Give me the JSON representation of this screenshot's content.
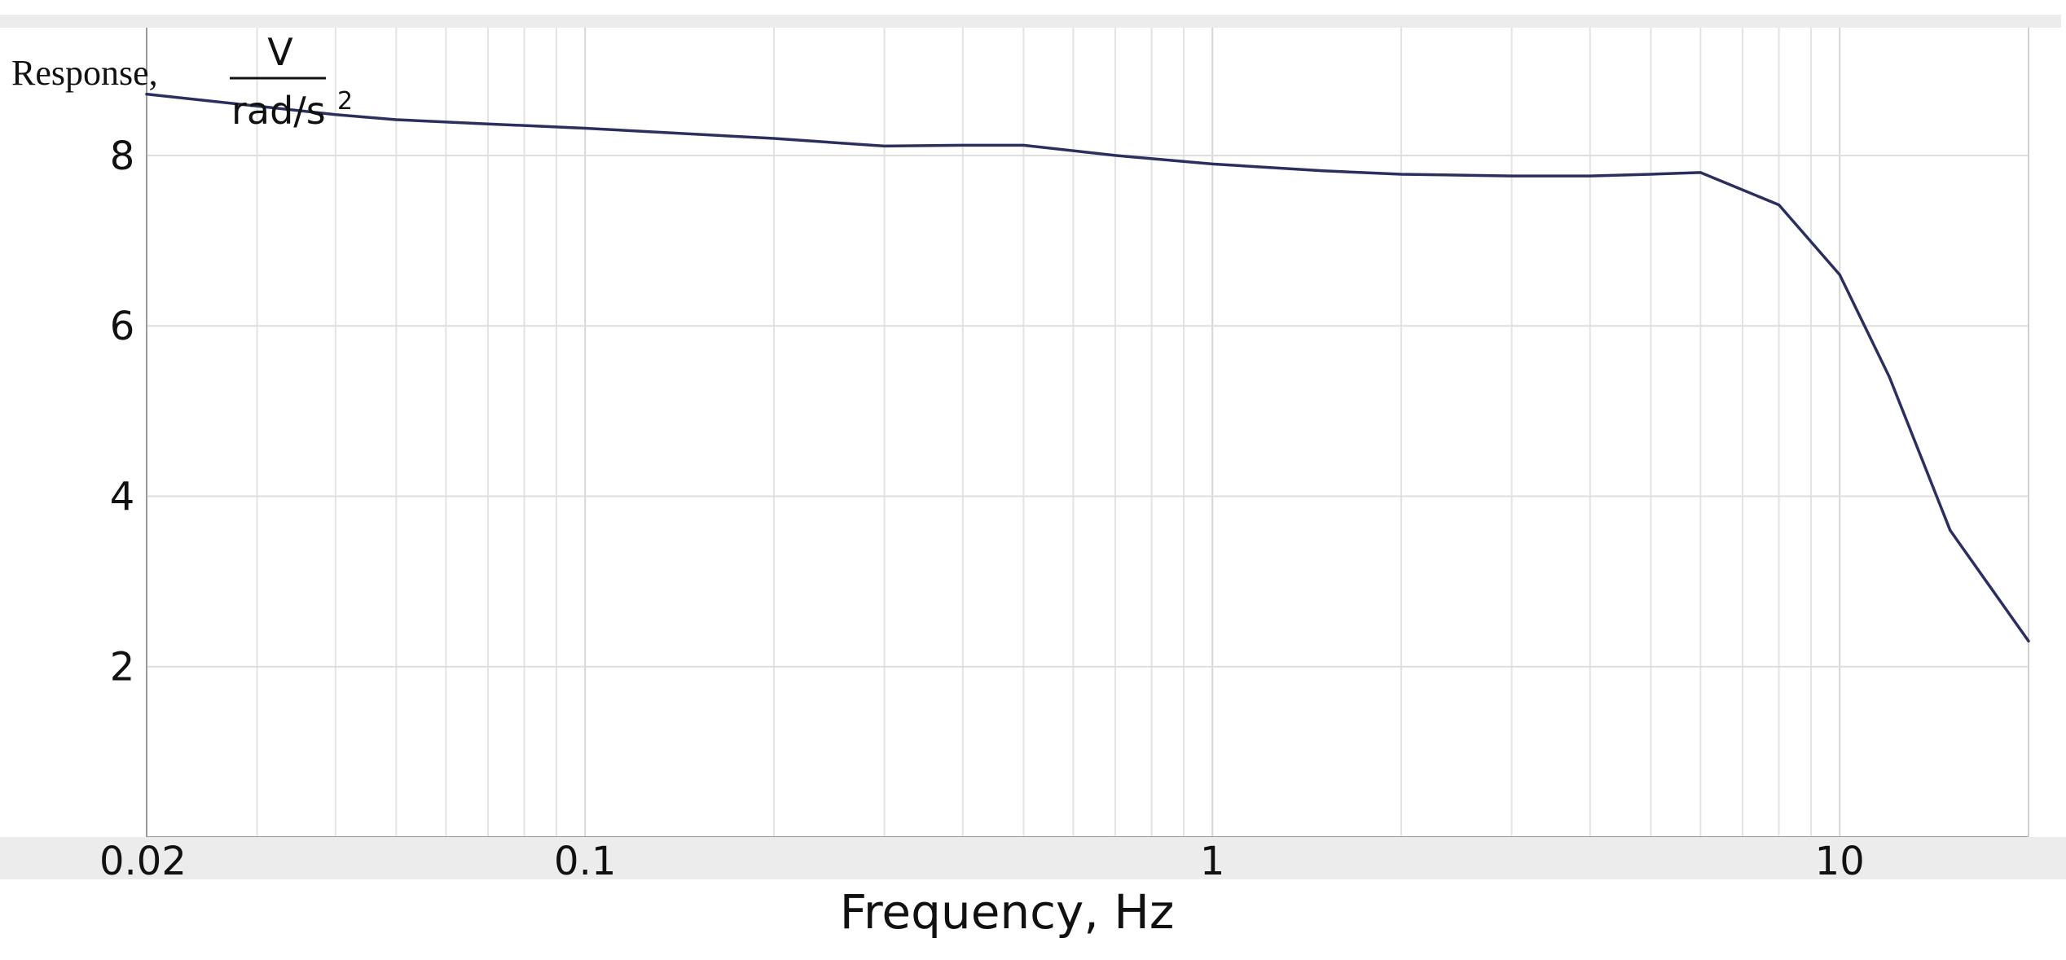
{
  "chart_data": {
    "type": "line",
    "x_scale": "log",
    "xlim": [
      0.02,
      20
    ],
    "ylim": [
      0,
      9.5
    ],
    "grid": true,
    "legend": "none",
    "line_color": "#2b2f5e",
    "xlabel": "Frequency, Hz",
    "ylabel": {
      "prefix": "Response,",
      "numerator": "V",
      "denominator": "rad/s",
      "exponent": "2"
    },
    "x_ticks": [
      {
        "value": 0.02,
        "label": "0.02"
      },
      {
        "value": 0.1,
        "label": "0.1"
      },
      {
        "value": 1,
        "label": "1"
      },
      {
        "value": 10,
        "label": "10"
      }
    ],
    "y_ticks": [
      {
        "value": 2,
        "label": "2"
      },
      {
        "value": 4,
        "label": "4"
      },
      {
        "value": 6,
        "label": "6"
      },
      {
        "value": 8,
        "label": "8"
      }
    ],
    "series": [
      {
        "x": [
          0.02,
          0.03,
          0.04,
          0.05,
          0.07,
          0.1,
          0.2,
          0.3,
          0.4,
          0.5,
          0.7,
          1,
          1.5,
          2,
          3,
          4,
          5,
          6,
          8,
          10,
          12,
          15,
          20
        ],
        "y": [
          8.72,
          8.58,
          8.48,
          8.42,
          8.37,
          8.32,
          8.2,
          8.11,
          8.12,
          8.12,
          8.0,
          7.9,
          7.82,
          7.78,
          7.76,
          7.76,
          7.78,
          7.8,
          7.42,
          6.6,
          5.4,
          3.6,
          2.3
        ]
      }
    ]
  }
}
